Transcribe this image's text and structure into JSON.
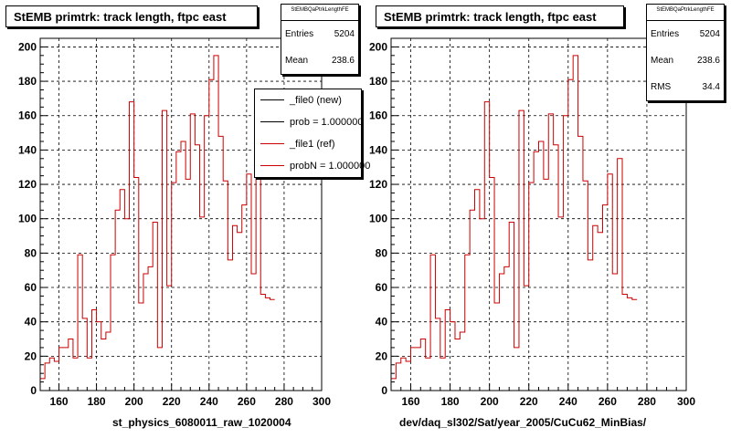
{
  "footer": "",
  "chart_data": [
    {
      "type": "histogram",
      "title": "StEMB primtrk: track length, ftpc east",
      "xlabel": "st_physics_6080011_raw_1020004",
      "ylabel": "",
      "xlim": [
        150,
        300
      ],
      "ylim": [
        0,
        205
      ],
      "xticks": [
        160,
        180,
        200,
        220,
        240,
        260,
        280,
        300
      ],
      "yticks": [
        0,
        20,
        40,
        60,
        80,
        100,
        120,
        140,
        160,
        180,
        200
      ],
      "grid": true,
      "bin_edges_start": 150,
      "bin_width": 2.5,
      "stats": {
        "name": "StEMBQaPtrkLengthFE",
        "entries_label": "Entries",
        "entries": "5204",
        "mean_label": "Mean",
        "mean": "238.6"
      },
      "legend": [
        {
          "label": "_file0 (new)",
          "color": "#000000"
        },
        {
          "label": "prob = 1.000000",
          "color": "#000000"
        },
        {
          "label": "_file1 (ref)",
          "color": "#cc0000"
        },
        {
          "label": "probN = 1.000000",
          "color": "#cc0000"
        }
      ],
      "series": [
        {
          "name": "_file1 (ref)",
          "color": "#cc0000",
          "values": [
            7,
            16,
            19,
            17,
            25,
            25,
            30,
            19,
            79,
            42,
            19,
            47,
            40,
            30,
            34,
            79,
            105,
            117,
            100,
            168,
            124,
            51,
            68,
            72,
            98,
            25,
            163,
            61,
            121,
            139,
            145,
            123,
            161,
            143,
            101,
            160,
            181,
            195,
            148,
            122,
            76,
            96,
            92,
            108,
            126,
            68,
            135,
            56,
            54,
            53
          ]
        }
      ]
    },
    {
      "type": "histogram",
      "title": "StEMB primtrk: track length, ftpc east",
      "xlabel": "dev/daq_sl302/Sat/year_2005/CuCu62_MinBias/",
      "ylabel": "",
      "xlim": [
        150,
        300
      ],
      "ylim": [
        0,
        205
      ],
      "xticks": [
        160,
        180,
        200,
        220,
        240,
        260,
        280,
        300
      ],
      "yticks": [
        0,
        20,
        40,
        60,
        80,
        100,
        120,
        140,
        160,
        180,
        200
      ],
      "grid": true,
      "bin_edges_start": 150,
      "bin_width": 2.5,
      "stats": {
        "name": "StEMBQaPtrkLengthFE",
        "entries_label": "Entries",
        "entries": "5204",
        "mean_label": "Mean",
        "mean": "238.6",
        "rms_label": "RMS",
        "rms": "34.4"
      },
      "series": [
        {
          "name": "",
          "color": "#cc0000",
          "values": [
            7,
            16,
            19,
            17,
            25,
            25,
            30,
            19,
            79,
            42,
            19,
            47,
            40,
            30,
            34,
            79,
            105,
            117,
            100,
            168,
            124,
            51,
            68,
            72,
            98,
            25,
            163,
            61,
            121,
            139,
            145,
            123,
            161,
            143,
            101,
            160,
            181,
            195,
            148,
            122,
            76,
            96,
            92,
            108,
            126,
            68,
            135,
            56,
            54,
            53
          ]
        }
      ]
    }
  ]
}
